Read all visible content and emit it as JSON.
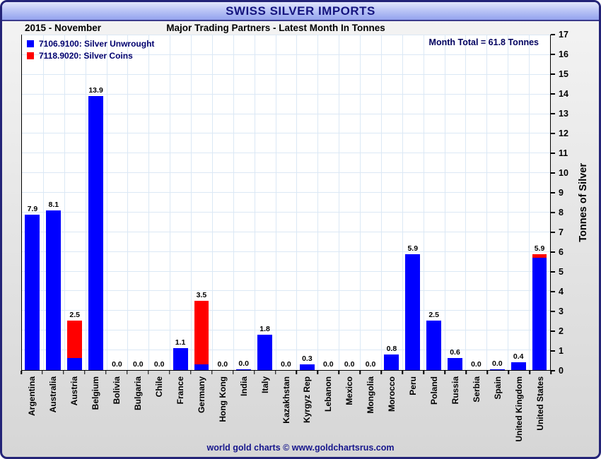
{
  "header": {
    "title": "SWISS SILVER IMPORTS",
    "period": "2015 - November",
    "subtitle": "Major Trading Partners - Latest Month In Tonnes"
  },
  "footer": {
    "text": "world gold charts © www.goldchartsrus.com"
  },
  "colors": {
    "unwrought_blue": "#0000ff",
    "coins_red": "#ff0000",
    "grid": "#dbe8f5",
    "navy_text": "#15157e"
  },
  "chart_data": {
    "type": "bar",
    "stacked": true,
    "title": "SWISS SILVER IMPORTS",
    "subtitle": "Major Trading Partners - Latest Month In Tonnes",
    "period": "2015 - November",
    "month_total": "Month Total = 61.8 Tonnes",
    "ylabel": "Tonnes of Silver",
    "xlabel": "",
    "ylim": [
      0,
      17
    ],
    "ytick_step": 1,
    "grid": true,
    "legend_position": "top-left",
    "categories": [
      "Argentina",
      "Australia",
      "Austria",
      "Belgium",
      "Bolivia",
      "Bulgaria",
      "Chile",
      "France",
      "Germany",
      "Hong Kong",
      "India",
      "Italy",
      "Kazakhstan",
      "Kyrgyz Rep",
      "Lebanon",
      "Mexico",
      "Mongolia",
      "Morocco",
      "Peru",
      "Poland",
      "Russia",
      "Serbia",
      "Spain",
      "United Kingdom",
      "United States"
    ],
    "series": [
      {
        "name": "7106.9100: Silver Unwrought",
        "color": "#0000ff",
        "values": [
          7.9,
          8.1,
          0.6,
          13.9,
          0,
          0,
          0,
          1.1,
          0.3,
          0,
          0.05,
          1.8,
          0,
          0.3,
          0,
          0,
          0,
          0.8,
          5.9,
          2.5,
          0.6,
          0,
          0.05,
          0.4,
          5.7
        ]
      },
      {
        "name": "7118.9020: Silver Coins",
        "color": "#ff0000",
        "values": [
          0,
          0,
          1.9,
          0,
          0,
          0,
          0,
          0,
          3.2,
          0,
          0,
          0,
          0,
          0,
          0,
          0,
          0,
          0,
          0,
          0,
          0,
          0,
          0,
          0,
          0.2
        ]
      }
    ],
    "bar_total_labels": [
      "7.9",
      "8.1",
      "2.5",
      "13.9",
      "0.0",
      "0.0",
      "0.0",
      "1.1",
      "3.5",
      "0.0",
      "0.0",
      "1.8",
      "0.0",
      "0.3",
      "0.0",
      "0.0",
      "0.0",
      "0.8",
      "5.9",
      "2.5",
      "0.6",
      "0.0",
      "0.0",
      "0.4",
      "5.9"
    ]
  }
}
